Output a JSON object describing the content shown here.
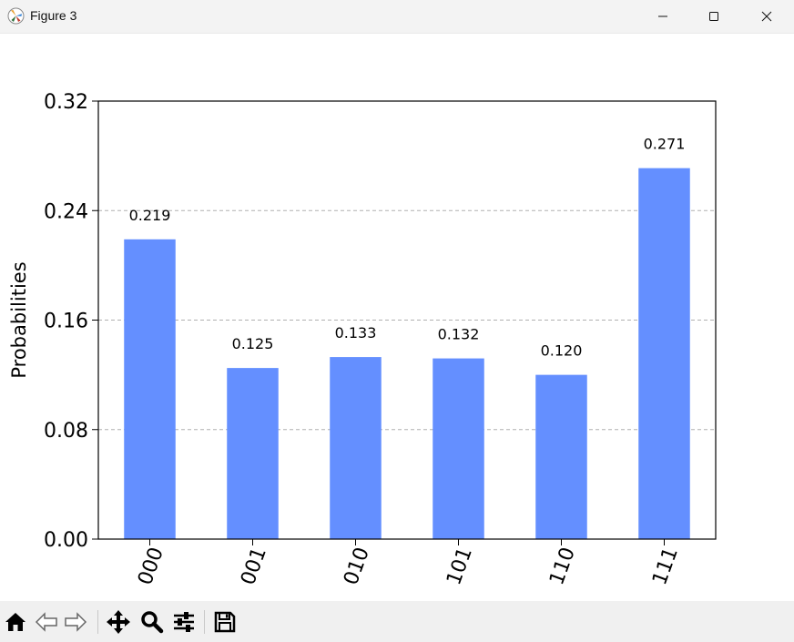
{
  "window": {
    "title": "Figure 3",
    "icons": [
      "app-icon",
      "minimize-icon",
      "maximize-icon",
      "close-icon"
    ]
  },
  "chart_data": {
    "type": "bar",
    "categories": [
      "000",
      "001",
      "010",
      "101",
      "110",
      "111"
    ],
    "values": [
      0.219,
      0.125,
      0.133,
      0.132,
      0.12,
      0.271
    ],
    "value_labels": [
      "0.219",
      "0.125",
      "0.133",
      "0.132",
      "0.120",
      "0.271"
    ],
    "ylabel": "Probabilities",
    "xlabel": "",
    "ylim": [
      0,
      0.32
    ],
    "yticks": [
      "0.00",
      "0.08",
      "0.16",
      "0.24",
      "0.32"
    ],
    "ytick_values": [
      0,
      0.08,
      0.16,
      0.24,
      0.32
    ],
    "grid": "horizontal dashed",
    "bar_color": "#648fff",
    "grid_color": "#b0b0b0"
  },
  "toolbar": {
    "icons": [
      "home-icon",
      "back-icon",
      "forward-icon",
      "pan-icon",
      "zoom-icon",
      "configure-subplots-icon",
      "save-icon"
    ]
  }
}
